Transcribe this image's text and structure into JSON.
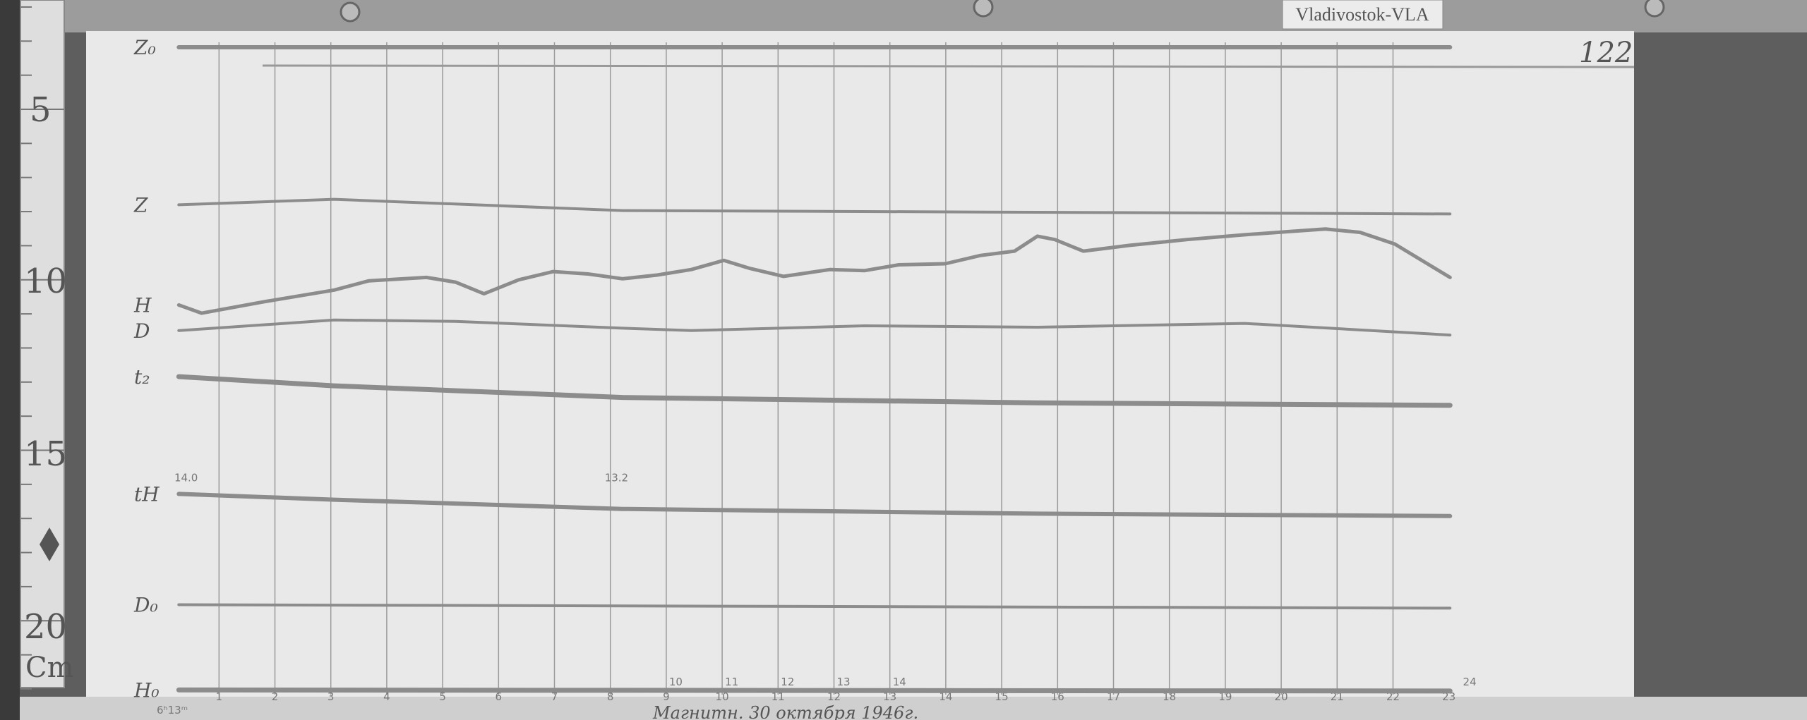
{
  "station_label": "Vladivostok-VLA",
  "sheet_number": "122",
  "ruler": {
    "ticks": [
      "5",
      "10",
      "15",
      "20"
    ],
    "unit": "Cm"
  },
  "footer_text": "Магнитн. 30 октября 1946г.",
  "start_time_label": "6ʰ13ᵐ",
  "chart_data": {
    "type": "line",
    "title": "",
    "xlabel": "",
    "ylabel": "",
    "x_unit_note": "hours",
    "xlim": [
      0,
      23
    ],
    "ylim_ruler_cm": [
      2,
      23
    ],
    "grid": "vertical hour lines",
    "bottom_tick_labels": [
      "1",
      "2",
      "3",
      "4",
      "5",
      "6",
      "7",
      "8",
      "9",
      "10",
      "11",
      "12",
      "13",
      "14",
      "15",
      "16",
      "17",
      "18",
      "19",
      "20",
      "21",
      "22",
      "23"
    ],
    "top_tick_labels": [
      {
        "label": "10",
        "x": 9
      },
      {
        "label": "11",
        "x": 10
      },
      {
        "label": "12",
        "x": 11
      },
      {
        "label": "13",
        "x": 12
      },
      {
        "label": "14",
        "x": 13
      },
      {
        "label": "24",
        "x": 23.2
      }
    ],
    "annotations": [
      {
        "text": "14.0",
        "series": "tH",
        "x": 0.2
      },
      {
        "text": "13.2",
        "series": "tH",
        "x": 8.0
      }
    ],
    "series": [
      {
        "name": "Z₀",
        "points": [
          [
            0.28,
            3.18
          ],
          [
            23.02,
            3.18
          ]
        ]
      },
      {
        "name": "Z",
        "points": [
          [
            0.28,
            7.8
          ],
          [
            3.06,
            7.64
          ],
          [
            8.22,
            7.97
          ],
          [
            15.64,
            8.02
          ],
          [
            23.02,
            8.07
          ]
        ]
      },
      {
        "name": "H",
        "points": [
          [
            0.28,
            10.74
          ],
          [
            0.69,
            10.98
          ],
          [
            1.82,
            10.64
          ],
          [
            3.06,
            10.3
          ],
          [
            3.68,
            10.03
          ],
          [
            4.71,
            9.93
          ],
          [
            5.23,
            10.07
          ],
          [
            5.74,
            10.41
          ],
          [
            6.36,
            10.0
          ],
          [
            6.98,
            9.76
          ],
          [
            7.6,
            9.83
          ],
          [
            8.22,
            9.97
          ],
          [
            8.84,
            9.86
          ],
          [
            9.45,
            9.7
          ],
          [
            10.03,
            9.43
          ],
          [
            10.48,
            9.66
          ],
          [
            11.1,
            9.9
          ],
          [
            11.93,
            9.7
          ],
          [
            12.55,
            9.73
          ],
          [
            13.16,
            9.56
          ],
          [
            13.99,
            9.53
          ],
          [
            14.61,
            9.29
          ],
          [
            15.23,
            9.16
          ],
          [
            15.64,
            8.72
          ],
          [
            15.95,
            8.82
          ],
          [
            16.46,
            9.16
          ],
          [
            17.29,
            8.99
          ],
          [
            18.32,
            8.82
          ],
          [
            19.35,
            8.68
          ],
          [
            20.18,
            8.58
          ],
          [
            20.79,
            8.51
          ],
          [
            21.41,
            8.61
          ],
          [
            22.03,
            8.95
          ],
          [
            23.02,
            9.93
          ]
        ]
      },
      {
        "name": "D",
        "points": [
          [
            0.28,
            11.49
          ],
          [
            3.06,
            11.18
          ],
          [
            5.23,
            11.22
          ],
          [
            8.22,
            11.42
          ],
          [
            9.45,
            11.49
          ],
          [
            12.55,
            11.35
          ],
          [
            15.64,
            11.39
          ],
          [
            19.35,
            11.28
          ],
          [
            23.02,
            11.62
          ]
        ]
      },
      {
        "name": "t₂",
        "points": [
          [
            0.28,
            12.84
          ],
          [
            3.06,
            13.11
          ],
          [
            8.22,
            13.45
          ],
          [
            15.64,
            13.61
          ],
          [
            23.02,
            13.68
          ]
        ]
      },
      {
        "name": "tH",
        "points": [
          [
            0.28,
            16.28
          ],
          [
            3.06,
            16.45
          ],
          [
            8.22,
            16.72
          ],
          [
            15.64,
            16.86
          ],
          [
            23.02,
            16.93
          ]
        ]
      },
      {
        "name": "D₀",
        "points": [
          [
            0.28,
            19.53
          ],
          [
            23.02,
            19.63
          ]
        ]
      },
      {
        "name": "H₀",
        "points": [
          [
            0.28,
            22.03
          ],
          [
            23.02,
            22.06
          ]
        ]
      }
    ]
  },
  "colors": {
    "paper": "#e9e9e9",
    "trace": "#8c8c8c",
    "wood": "#5e5e5e",
    "grid": "#9a9a9a"
  }
}
